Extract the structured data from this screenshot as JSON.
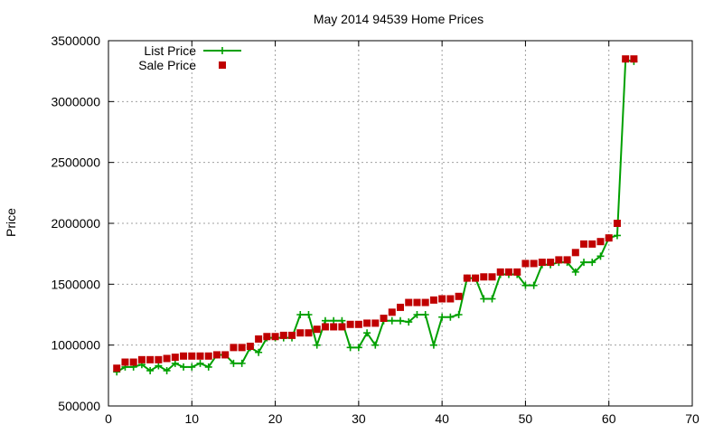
{
  "chart_data": {
    "type": "line",
    "title": "May 2014 94539 Home Prices",
    "xlabel": "",
    "ylabel": "Price",
    "xlim": [
      0,
      70
    ],
    "ylim": [
      500000,
      3500000
    ],
    "xticks": [
      0,
      10,
      20,
      30,
      40,
      50,
      60,
      70
    ],
    "yticks": [
      500000,
      1000000,
      1500000,
      2000000,
      2500000,
      3000000,
      3500000
    ],
    "xtick_labels": [
      "0",
      "10",
      "20",
      "30",
      "40",
      "50",
      "60",
      "70"
    ],
    "ytick_labels": [
      "500000",
      "1000000",
      "1500000",
      "2000000",
      "2500000",
      "3000000",
      "3500000"
    ],
    "grid": true,
    "legend_position": "top-left",
    "series": [
      {
        "name": "List Price",
        "style": "line-with-plus-markers",
        "color": "#00a000",
        "x": [
          1,
          2,
          3,
          4,
          5,
          6,
          7,
          8,
          9,
          10,
          11,
          12,
          13,
          14,
          15,
          16,
          17,
          18,
          19,
          20,
          21,
          22,
          23,
          24,
          25,
          26,
          27,
          28,
          29,
          30,
          31,
          32,
          33,
          34,
          35,
          36,
          37,
          38,
          39,
          40,
          41,
          42,
          43,
          44,
          45,
          46,
          47,
          48,
          49,
          50,
          51,
          52,
          53,
          54,
          55,
          56,
          57,
          58,
          59,
          60,
          61,
          62,
          63
        ],
        "values": [
          780000,
          820000,
          820000,
          840000,
          790000,
          830000,
          790000,
          850000,
          820000,
          820000,
          850000,
          820000,
          920000,
          920000,
          850000,
          850000,
          980000,
          940000,
          1060000,
          1060000,
          1060000,
          1060000,
          1250000,
          1250000,
          1000000,
          1200000,
          1200000,
          1200000,
          980000,
          980000,
          1100000,
          1000000,
          1200000,
          1200000,
          1200000,
          1190000,
          1250000,
          1250000,
          1000000,
          1230000,
          1230000,
          1250000,
          1550000,
          1550000,
          1380000,
          1380000,
          1580000,
          1580000,
          1580000,
          1490000,
          1490000,
          1660000,
          1660000,
          1680000,
          1680000,
          1600000,
          1680000,
          1680000,
          1730000,
          1880000,
          1900000,
          3340000,
          3330000
        ]
      },
      {
        "name": "Sale Price",
        "style": "square-markers",
        "color": "#c00000",
        "x": [
          1,
          2,
          3,
          4,
          5,
          6,
          7,
          8,
          9,
          10,
          11,
          12,
          13,
          14,
          15,
          16,
          17,
          18,
          19,
          20,
          21,
          22,
          23,
          24,
          25,
          26,
          27,
          28,
          29,
          30,
          31,
          32,
          33,
          34,
          35,
          36,
          37,
          38,
          39,
          40,
          41,
          42,
          43,
          44,
          45,
          46,
          47,
          48,
          49,
          50,
          51,
          52,
          53,
          54,
          55,
          56,
          57,
          58,
          59,
          60,
          61,
          62,
          63
        ],
        "values": [
          810000,
          860000,
          860000,
          880000,
          880000,
          880000,
          890000,
          900000,
          910000,
          910000,
          910000,
          910000,
          920000,
          920000,
          980000,
          980000,
          990000,
          1050000,
          1070000,
          1070000,
          1080000,
          1080000,
          1100000,
          1100000,
          1130000,
          1150000,
          1150000,
          1150000,
          1170000,
          1170000,
          1180000,
          1180000,
          1220000,
          1270000,
          1310000,
          1350000,
          1350000,
          1350000,
          1370000,
          1380000,
          1380000,
          1400000,
          1550000,
          1550000,
          1560000,
          1560000,
          1600000,
          1600000,
          1600000,
          1670000,
          1670000,
          1680000,
          1680000,
          1700000,
          1700000,
          1760000,
          1830000,
          1830000,
          1850000,
          1880000,
          2000000,
          3350000,
          3350000
        ]
      }
    ]
  }
}
